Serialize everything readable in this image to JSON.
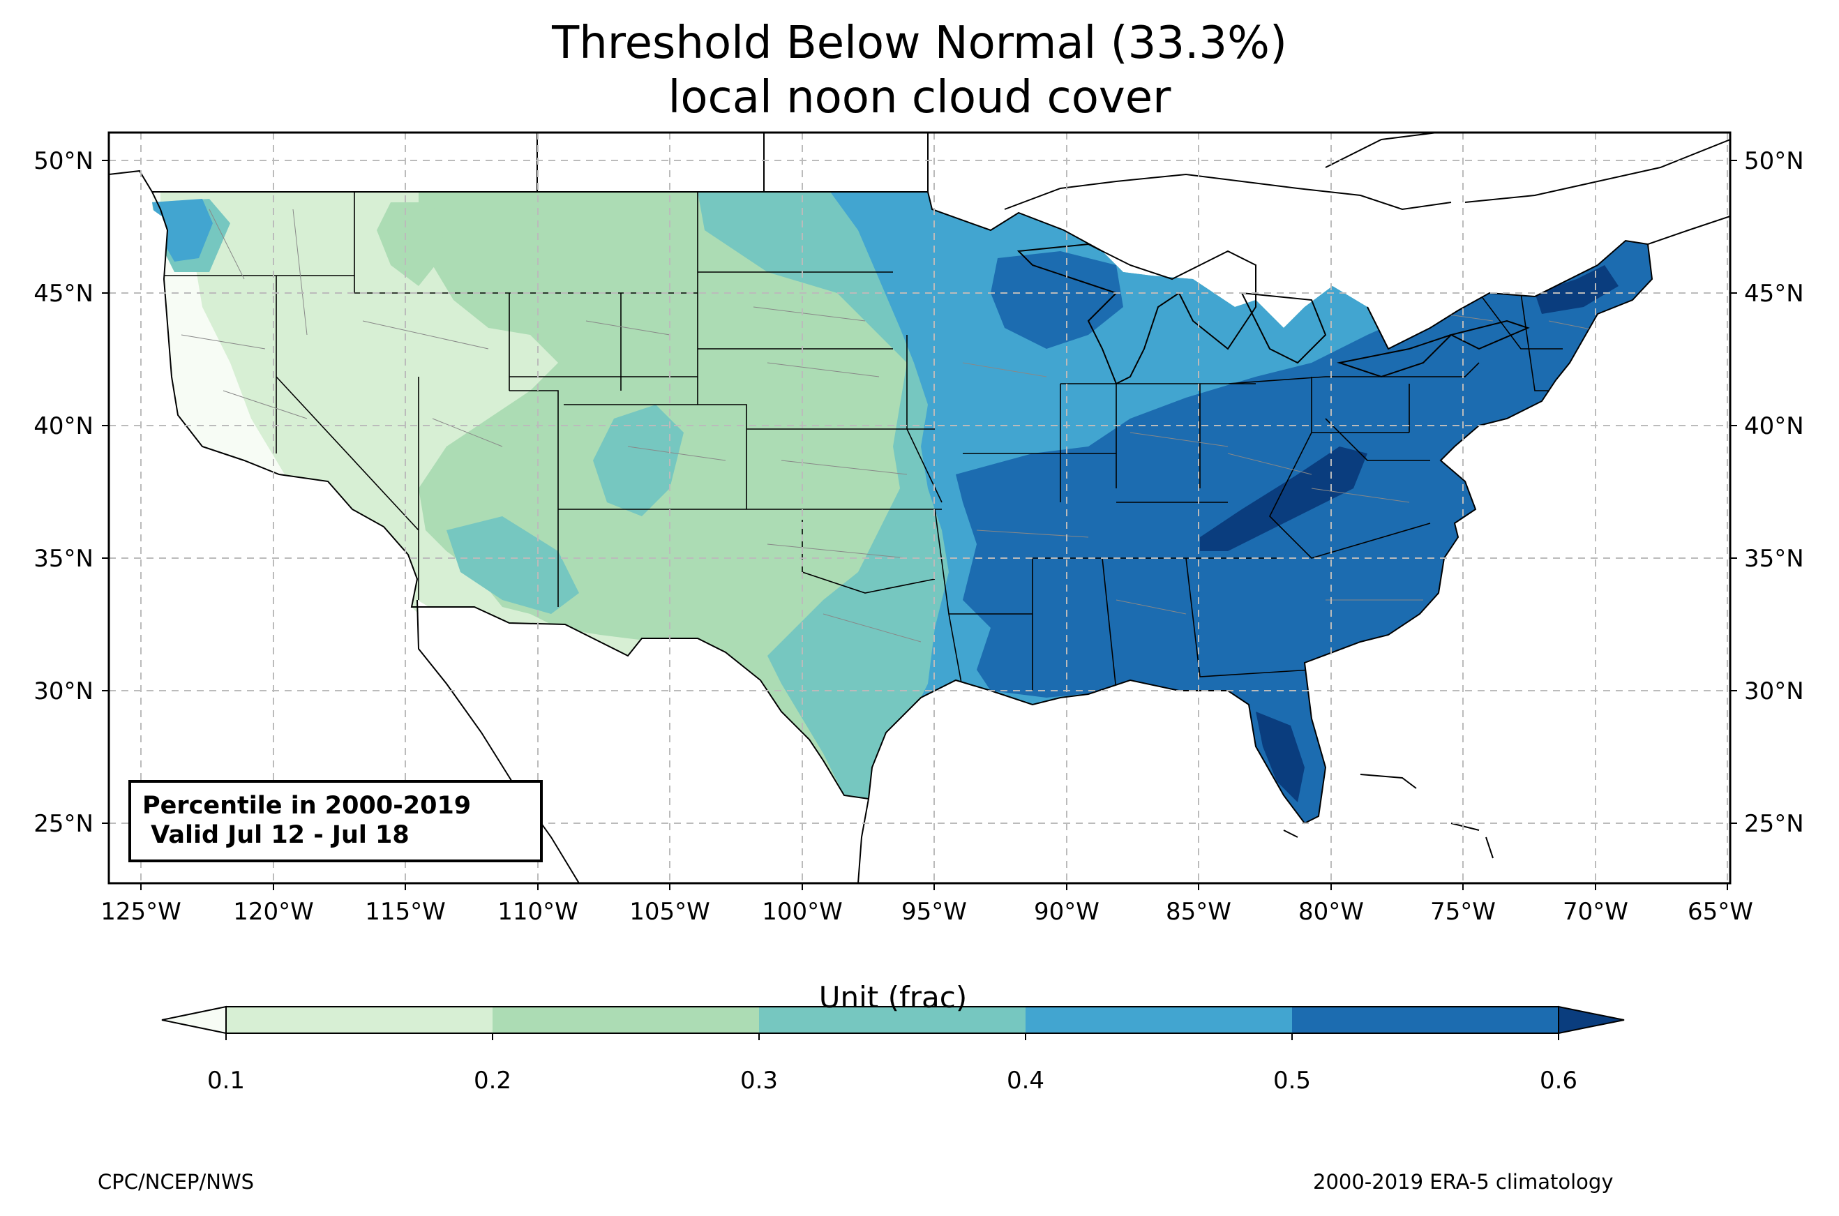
{
  "title": {
    "line1": "Threshold Below Normal (33.3%)",
    "line2": "local noon cloud cover"
  },
  "map": {
    "lon_range": [
      -126.3,
      -64.9
    ],
    "lat_range": [
      22.8,
      51.1
    ],
    "lon_ticks": [
      "125°W",
      "120°W",
      "115°W",
      "110°W",
      "105°W",
      "100°W",
      "95°W",
      "90°W",
      "85°W",
      "80°W",
      "75°W",
      "70°W",
      "65°W"
    ],
    "lat_ticks": [
      "25°N",
      "30°N",
      "35°N",
      "40°N",
      "45°N",
      "50°N"
    ],
    "gridlines": true,
    "colors": {
      "lt_0.1": "#f7fcf5",
      "0.1-0.2": "#d7efd4",
      "0.2-0.3": "#acdcb4",
      "0.3-0.4": "#76c7c0",
      "0.4-0.5": "#42a5d0",
      "0.5-0.6": "#1c6cb0",
      "gt_0.6": "#0a3d7e"
    },
    "regions": [
      {
        "name": "desert-southwest-lowest",
        "level": "lt_0.1"
      },
      {
        "name": "intermountain-west",
        "level": "0.1-0.2"
      },
      {
        "name": "rockies-plains",
        "level": "0.2-0.3"
      },
      {
        "name": "central-plains-transition",
        "level": "0.3-0.4"
      },
      {
        "name": "midwest-mississippi",
        "level": "0.4-0.5"
      },
      {
        "name": "southeast-northeast",
        "level": "0.5-0.6"
      },
      {
        "name": "appalachians-florida-peak",
        "level": "gt_0.6"
      }
    ]
  },
  "info_box": {
    "line1": "Percentile in 2000-2019",
    "line2": " Valid Jul 12 - Jul 18"
  },
  "colorbar": {
    "title": "Unit (frac)",
    "ticks": [
      "0.1",
      "0.2",
      "0.3",
      "0.4",
      "0.5",
      "0.6"
    ],
    "colors": [
      "#f7fcf5",
      "#d7efd4",
      "#acdcb4",
      "#76c7c0",
      "#42a5d0",
      "#1c6cb0",
      "#0a3d7e"
    ]
  },
  "footer": {
    "left": "CPC/NCEP/NWS",
    "right": "2000-2019 ERA-5 climatology"
  }
}
